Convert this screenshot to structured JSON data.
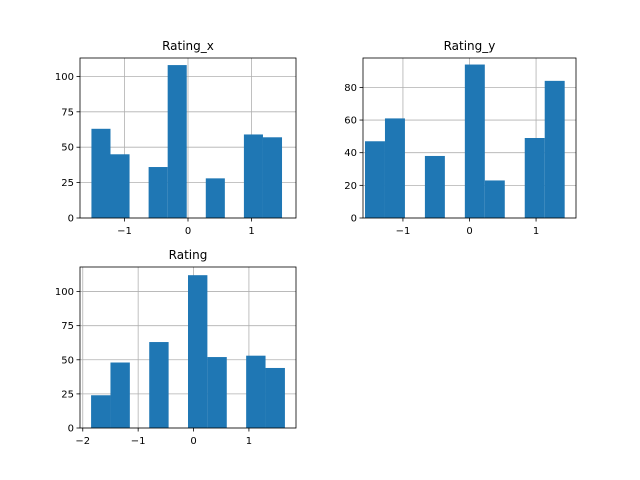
{
  "chart_data": [
    {
      "type": "bar",
      "title": "Rating_x",
      "xlim": [
        -1.7,
        1.7
      ],
      "ylim": [
        0,
        113
      ],
      "xticks": [
        -1,
        0,
        1
      ],
      "xtick_labels": [
        "−1",
        "0",
        "1"
      ],
      "yticks": [
        0,
        25,
        50,
        75,
        100
      ],
      "grid": true,
      "bins": [
        {
          "x0": -1.52,
          "x1": -1.22,
          "value": 63
        },
        {
          "x0": -1.22,
          "x1": -0.92,
          "value": 45
        },
        {
          "x0": -0.92,
          "x1": -0.62,
          "value": 0
        },
        {
          "x0": -0.62,
          "x1": -0.32,
          "value": 36
        },
        {
          "x0": -0.32,
          "x1": -0.02,
          "value": 108
        },
        {
          "x0": -0.02,
          "x1": 0.28,
          "value": 0
        },
        {
          "x0": 0.28,
          "x1": 0.58,
          "value": 28
        },
        {
          "x0": 0.58,
          "x1": 0.88,
          "value": 0
        },
        {
          "x0": 0.88,
          "x1": 1.18,
          "value": 59
        },
        {
          "x0": 1.18,
          "x1": 1.48,
          "value": 57
        }
      ]
    },
    {
      "type": "bar",
      "title": "Rating_y",
      "xlim": [
        -1.6,
        1.6
      ],
      "ylim": [
        0,
        98
      ],
      "xticks": [
        -1,
        0,
        1
      ],
      "xtick_labels": [
        "−1",
        "0",
        "1"
      ],
      "yticks": [
        0,
        20,
        40,
        60,
        80
      ],
      "grid": true,
      "bins": [
        {
          "x0": -1.57,
          "x1": -1.27,
          "value": 47
        },
        {
          "x0": -1.27,
          "x1": -0.97,
          "value": 61
        },
        {
          "x0": -0.97,
          "x1": -0.67,
          "value": 0
        },
        {
          "x0": -0.67,
          "x1": -0.37,
          "value": 38
        },
        {
          "x0": -0.37,
          "x1": -0.07,
          "value": 0
        },
        {
          "x0": -0.07,
          "x1": 0.23,
          "value": 94
        },
        {
          "x0": 0.23,
          "x1": 0.53,
          "value": 23
        },
        {
          "x0": 0.53,
          "x1": 0.83,
          "value": 0
        },
        {
          "x0": 0.83,
          "x1": 1.13,
          "value": 49
        },
        {
          "x0": 1.13,
          "x1": 1.43,
          "value": 84
        }
      ]
    },
    {
      "type": "bar",
      "title": "Rating",
      "xlim": [
        -2.05,
        1.85
      ],
      "ylim": [
        0,
        118
      ],
      "xticks": [
        -2,
        -1,
        0,
        1
      ],
      "xtick_labels": [
        "−2",
        "−1",
        "0",
        "1"
      ],
      "yticks": [
        0,
        25,
        50,
        75,
        100
      ],
      "grid": true,
      "bins": [
        {
          "x0": -1.85,
          "x1": -1.5,
          "value": 24
        },
        {
          "x0": -1.5,
          "x1": -1.15,
          "value": 48
        },
        {
          "x0": -1.15,
          "x1": -0.8,
          "value": 0
        },
        {
          "x0": -0.8,
          "x1": -0.45,
          "value": 63
        },
        {
          "x0": -0.45,
          "x1": -0.1,
          "value": 0
        },
        {
          "x0": -0.1,
          "x1": 0.25,
          "value": 112
        },
        {
          "x0": 0.25,
          "x1": 0.6,
          "value": 52
        },
        {
          "x0": 0.6,
          "x1": 0.95,
          "value": 0
        },
        {
          "x0": 0.95,
          "x1": 1.3,
          "value": 53
        },
        {
          "x0": 1.3,
          "x1": 1.65,
          "value": 44
        }
      ]
    }
  ],
  "colors": {
    "bar": "#1f77b4",
    "grid": "#b0b0b0",
    "axis": "#000000"
  }
}
